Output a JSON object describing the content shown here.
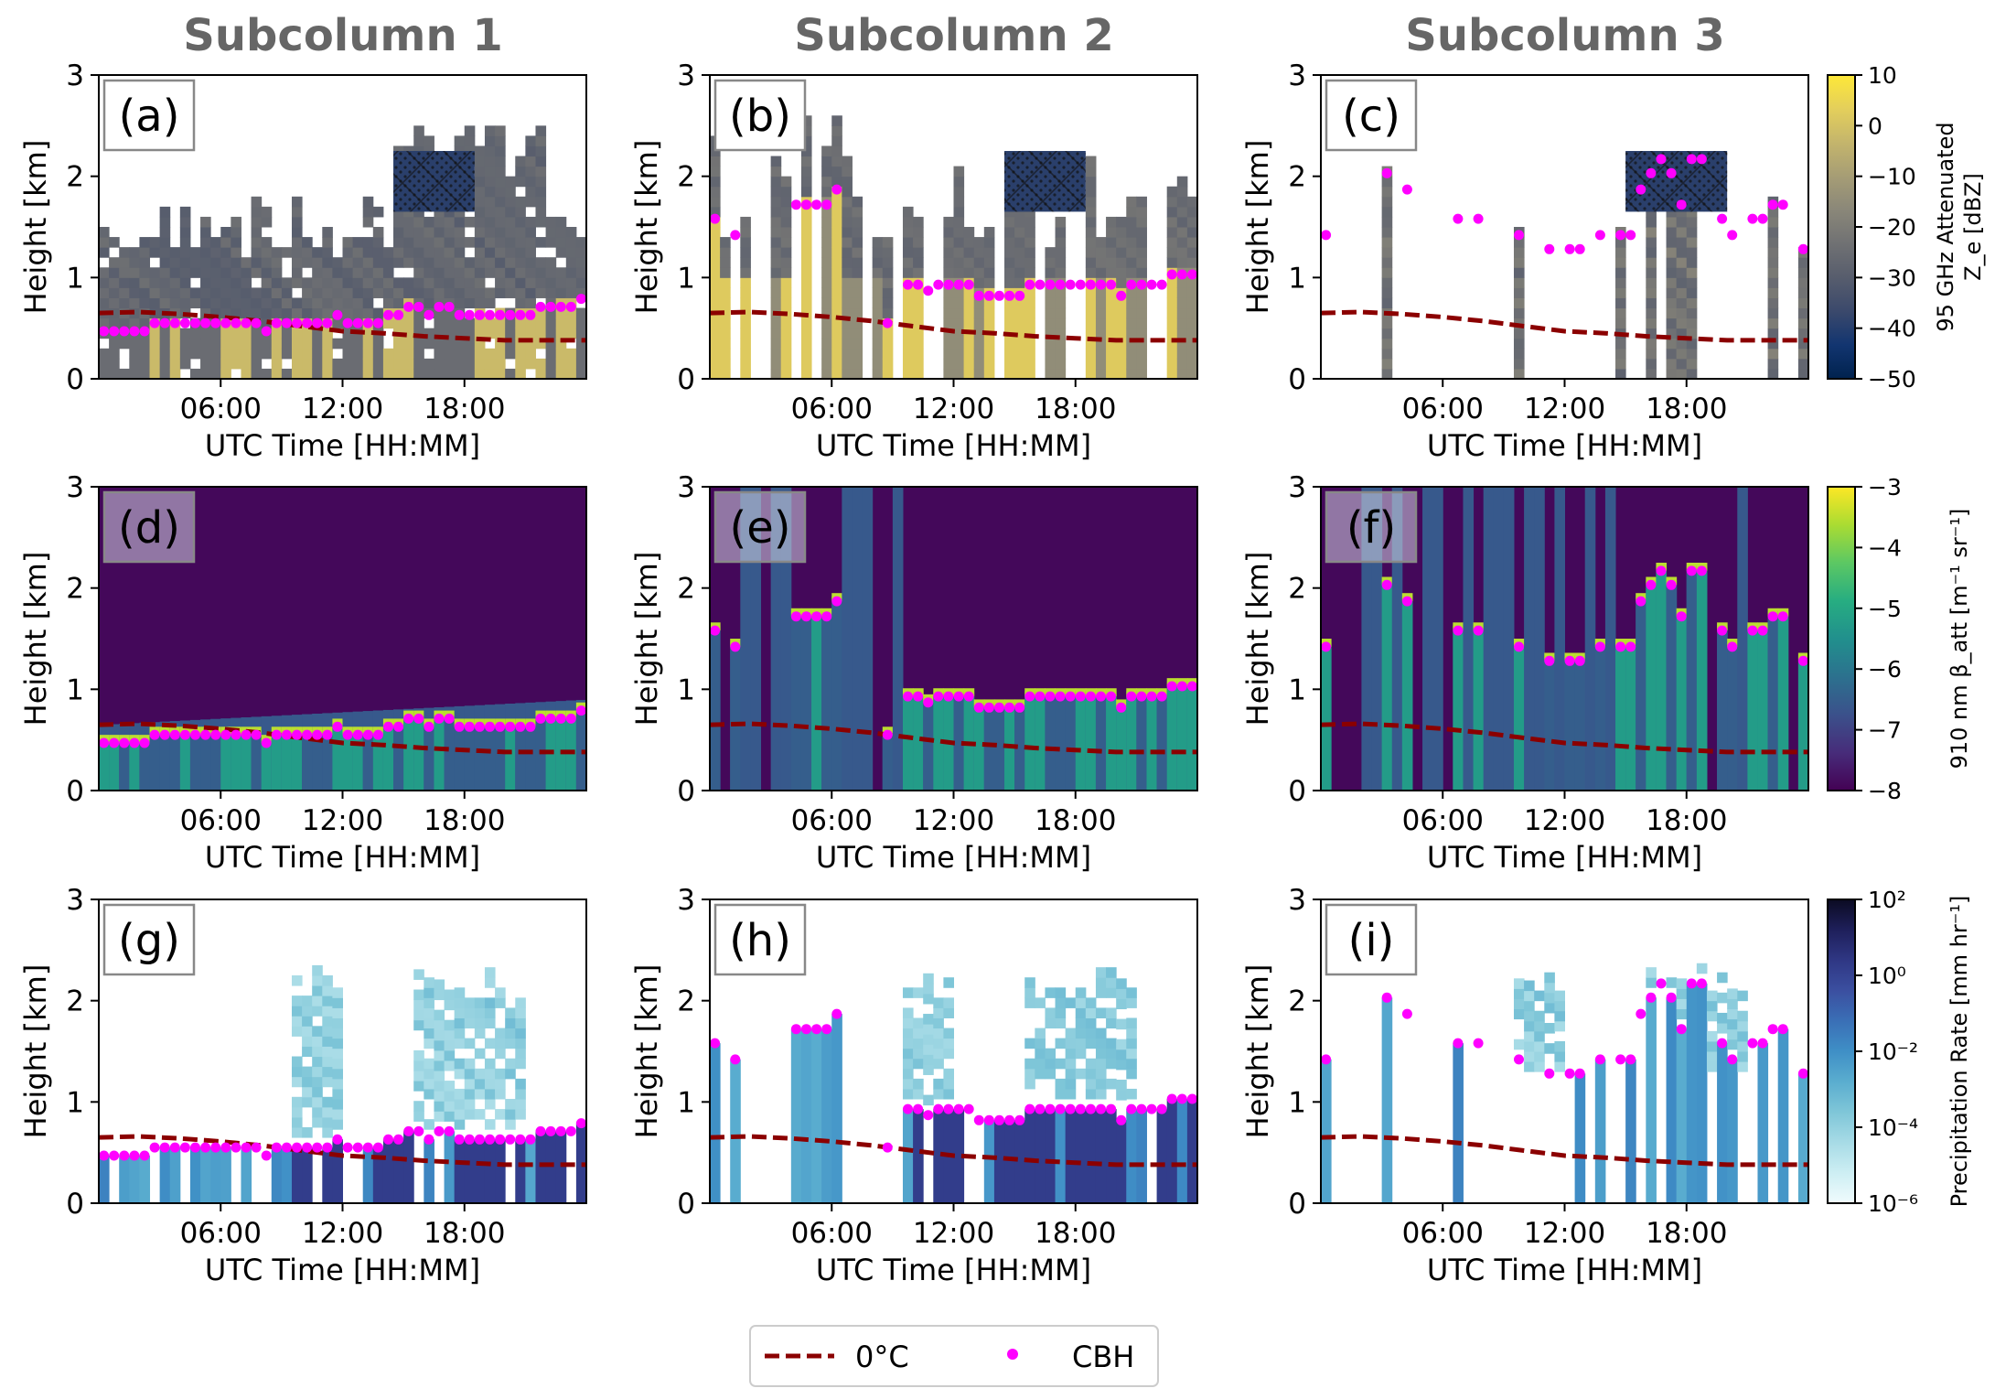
{
  "column_titles": [
    "Subcolumn 1",
    "Subcolumn 2",
    "Subcolumn 3"
  ],
  "panel_letters": [
    "(a)",
    "(b)",
    "(c)",
    "(d)",
    "(e)",
    "(f)",
    "(g)",
    "(h)",
    "(i)"
  ],
  "colors": {
    "freezing_line": "#8b0000",
    "cbh_marker": "#ff00ff",
    "title_gray": "#666666"
  },
  "legend": {
    "freezing_label": "0°C",
    "cbh_label": "CBH"
  },
  "chart_data": {
    "type": "heatmap",
    "layout": "3x3 grid of time-height panels",
    "xlabel": "UTC Time [HH:MM]",
    "ylabel": "Height [km]",
    "x_range_hours": [
      0,
      24
    ],
    "x_ticks": [
      "06:00",
      "12:00",
      "18:00"
    ],
    "x_tick_hours": [
      6,
      12,
      18
    ],
    "y_range_km": [
      0,
      3
    ],
    "y_ticks": [
      "0",
      "1",
      "2",
      "3"
    ],
    "y_tick_values": [
      0,
      1,
      2,
      3
    ],
    "grid": false,
    "legend_placement": "bottom-center",
    "rows": [
      {
        "variable": "95 GHz Attenuated Ze",
        "colorbar_label_lines": [
          "95 GHz Attenuated",
          "Z_e [dBZ]"
        ],
        "colormap": "cividis",
        "clim": [
          -50,
          10
        ],
        "scale": "linear",
        "colorbar_ticks": [
          "10",
          "0",
          "−10",
          "−20",
          "−30",
          "−40",
          "−50"
        ],
        "colorbar_tick_values": [
          10,
          0,
          -10,
          -20,
          -30,
          -40,
          -50
        ]
      },
      {
        "variable": "910 nm attenuated backscatter",
        "colorbar_label_lines": [
          "910 nm β_att [m⁻¹ sr⁻¹]"
        ],
        "colormap": "viridis",
        "clim": [
          -8,
          -3
        ],
        "scale": "log10",
        "colorbar_ticks": [
          "−3",
          "−4",
          "−5",
          "−6",
          "−7",
          "−8"
        ],
        "colorbar_tick_values": [
          -3,
          -4,
          -5,
          -6,
          -7,
          -8
        ]
      },
      {
        "variable": "Precipitation Rate",
        "colorbar_label_lines": [
          "Precipitation Rate [mm hr⁻¹]"
        ],
        "colormap": "blues-dark",
        "clim": [
          -6,
          2
        ],
        "scale": "log10",
        "colorbar_ticks": [
          "10²",
          "10⁰",
          "10⁻²",
          "10⁻⁴",
          "10⁻⁶"
        ],
        "colorbar_tick_values": [
          2,
          0,
          -2,
          -4,
          -6
        ]
      }
    ],
    "freezing_level": {
      "name": "0°C",
      "x_hours": [
        0,
        2,
        4,
        6,
        8,
        10,
        12,
        14,
        16,
        18,
        20,
        22,
        24
      ],
      "y_km": [
        0.65,
        0.66,
        0.64,
        0.61,
        0.57,
        0.52,
        0.47,
        0.45,
        0.42,
        0.4,
        0.38,
        0.38,
        0.38
      ]
    },
    "cbh": [
      {
        "column": 1,
        "points": [
          [
            0.25,
            0.47
          ],
          [
            0.75,
            0.47
          ],
          [
            1.25,
            0.47
          ],
          [
            1.75,
            0.47
          ],
          [
            2.25,
            0.47
          ],
          [
            2.75,
            0.55
          ],
          [
            3.25,
            0.55
          ],
          [
            3.75,
            0.55
          ],
          [
            4.25,
            0.55
          ],
          [
            4.75,
            0.55
          ],
          [
            5.25,
            0.55
          ],
          [
            5.75,
            0.55
          ],
          [
            6.25,
            0.55
          ],
          [
            6.75,
            0.55
          ],
          [
            7.25,
            0.55
          ],
          [
            7.75,
            0.55
          ],
          [
            8.25,
            0.47
          ],
          [
            8.75,
            0.55
          ],
          [
            9.25,
            0.55
          ],
          [
            9.75,
            0.55
          ],
          [
            10.25,
            0.55
          ],
          [
            10.75,
            0.55
          ],
          [
            11.25,
            0.55
          ],
          [
            11.75,
            0.63
          ],
          [
            12.25,
            0.55
          ],
          [
            12.75,
            0.55
          ],
          [
            13.25,
            0.55
          ],
          [
            13.75,
            0.55
          ],
          [
            14.25,
            0.63
          ],
          [
            14.75,
            0.63
          ],
          [
            15.25,
            0.71
          ],
          [
            15.75,
            0.71
          ],
          [
            16.25,
            0.63
          ],
          [
            16.75,
            0.71
          ],
          [
            17.25,
            0.71
          ],
          [
            17.75,
            0.63
          ],
          [
            18.25,
            0.63
          ],
          [
            18.75,
            0.63
          ],
          [
            19.25,
            0.63
          ],
          [
            19.75,
            0.63
          ],
          [
            20.25,
            0.63
          ],
          [
            20.75,
            0.63
          ],
          [
            21.25,
            0.63
          ],
          [
            21.75,
            0.71
          ],
          [
            22.25,
            0.71
          ],
          [
            22.75,
            0.71
          ],
          [
            23.25,
            0.71
          ],
          [
            23.75,
            0.79
          ]
        ]
      },
      {
        "column": 2,
        "points": [
          [
            0.25,
            1.58
          ],
          [
            1.25,
            1.42
          ],
          [
            4.25,
            1.72
          ],
          [
            4.75,
            1.72
          ],
          [
            5.25,
            1.72
          ],
          [
            5.75,
            1.72
          ],
          [
            6.25,
            1.87
          ],
          [
            8.75,
            0.55
          ],
          [
            9.75,
            0.93
          ],
          [
            10.25,
            0.93
          ],
          [
            10.75,
            0.87
          ],
          [
            11.25,
            0.93
          ],
          [
            11.75,
            0.93
          ],
          [
            12.25,
            0.93
          ],
          [
            12.75,
            0.93
          ],
          [
            13.25,
            0.82
          ],
          [
            13.75,
            0.82
          ],
          [
            14.25,
            0.82
          ],
          [
            14.75,
            0.82
          ],
          [
            15.25,
            0.82
          ],
          [
            15.75,
            0.93
          ],
          [
            16.25,
            0.93
          ],
          [
            16.75,
            0.93
          ],
          [
            17.25,
            0.93
          ],
          [
            17.75,
            0.93
          ],
          [
            18.25,
            0.93
          ],
          [
            18.75,
            0.93
          ],
          [
            19.25,
            0.93
          ],
          [
            19.75,
            0.93
          ],
          [
            20.25,
            0.82
          ],
          [
            20.75,
            0.93
          ],
          [
            21.25,
            0.93
          ],
          [
            21.75,
            0.93
          ],
          [
            22.25,
            0.93
          ],
          [
            22.75,
            1.03
          ],
          [
            23.25,
            1.03
          ],
          [
            23.75,
            1.03
          ]
        ]
      },
      {
        "column": 3,
        "points": [
          [
            0.25,
            1.42
          ],
          [
            3.25,
            2.03
          ],
          [
            4.25,
            1.87
          ],
          [
            6.75,
            1.58
          ],
          [
            7.75,
            1.58
          ],
          [
            9.75,
            1.42
          ],
          [
            11.25,
            1.28
          ],
          [
            12.25,
            1.28
          ],
          [
            12.75,
            1.28
          ],
          [
            13.75,
            1.42
          ],
          [
            14.75,
            1.42
          ],
          [
            15.25,
            1.42
          ],
          [
            15.75,
            1.87
          ],
          [
            16.25,
            2.03
          ],
          [
            16.75,
            2.17
          ],
          [
            17.25,
            2.03
          ],
          [
            17.75,
            1.72
          ],
          [
            18.25,
            2.17
          ],
          [
            18.75,
            2.17
          ],
          [
            19.75,
            1.58
          ],
          [
            20.25,
            1.42
          ],
          [
            21.25,
            1.58
          ],
          [
            21.75,
            1.58
          ],
          [
            22.25,
            1.72
          ],
          [
            22.75,
            1.72
          ],
          [
            23.75,
            1.28
          ]
        ]
      }
    ]
  }
}
